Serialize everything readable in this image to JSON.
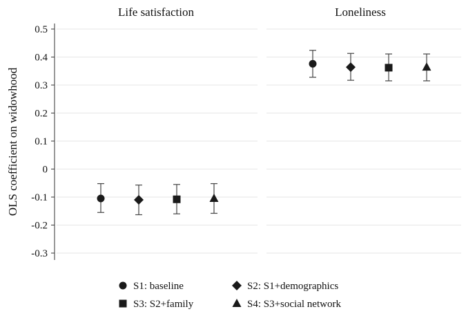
{
  "chart_data": {
    "type": "scatter",
    "ylabel": "OLS coefficient on widowhood",
    "ylim": [
      -0.3,
      0.5
    ],
    "yticks": [
      0.5,
      0.4,
      0.3,
      0.2,
      0.1,
      0,
      -0.1,
      -0.2,
      -0.3
    ],
    "ytick_labels": [
      "0.5",
      "0.4",
      "0.3",
      "0.2",
      "0.1",
      "0",
      "-0.1",
      "-0.2",
      "-0.3"
    ],
    "grid": true,
    "legend_position": "bottom",
    "panels": [
      {
        "title": "Life satisfaction",
        "points": [
          {
            "series": "S1: baseline",
            "value": -0.105,
            "ci": [
              -0.155,
              -0.052
            ]
          },
          {
            "series": "S2: S1+demographics",
            "value": -0.11,
            "ci": [
              -0.163,
              -0.057
            ]
          },
          {
            "series": "S3: S2+family",
            "value": -0.108,
            "ci": [
              -0.16,
              -0.055
            ]
          },
          {
            "series": "S4: S3+social network",
            "value": -0.105,
            "ci": [
              -0.158,
              -0.052
            ]
          }
        ]
      },
      {
        "title": "Loneliness",
        "points": [
          {
            "series": "S1: baseline",
            "value": 0.376,
            "ci": [
              0.328,
              0.424
            ]
          },
          {
            "series": "S2: S1+demographics",
            "value": 0.364,
            "ci": [
              0.317,
              0.413
            ]
          },
          {
            "series": "S3: S2+family",
            "value": 0.362,
            "ci": [
              0.315,
              0.411
            ]
          },
          {
            "series": "S4: S3+social network",
            "value": 0.364,
            "ci": [
              0.315,
              0.411
            ]
          }
        ]
      }
    ],
    "series": [
      {
        "name": "S1: baseline",
        "marker": "circle"
      },
      {
        "name": "S2: S1+demographics",
        "marker": "diamond"
      },
      {
        "name": "S3: S2+family",
        "marker": "square"
      },
      {
        "name": "S4: S3+social network",
        "marker": "triangle"
      }
    ],
    "colors": {
      "marker": "#1a1a1a",
      "errorbar": "#444444",
      "grid": "#e6e6e6",
      "axis": "#333333"
    }
  }
}
